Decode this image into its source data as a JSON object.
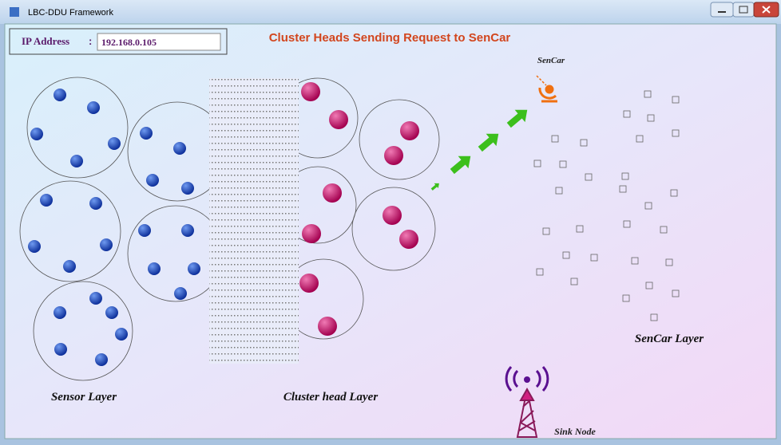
{
  "window": {
    "title": "LBC-DDU Framework"
  },
  "ip": {
    "label": "IP Address",
    "separator": ":",
    "value": "192.168.0.105"
  },
  "heading": "Cluster Heads Sending Request to SenCar",
  "labels": {
    "sencar": "SenCar",
    "sensor_layer": "Sensor Layer",
    "cluster_layer": "Cluster head Layer",
    "sencar_layer": "SenCar Layer",
    "sink": "Sink Node"
  }
}
